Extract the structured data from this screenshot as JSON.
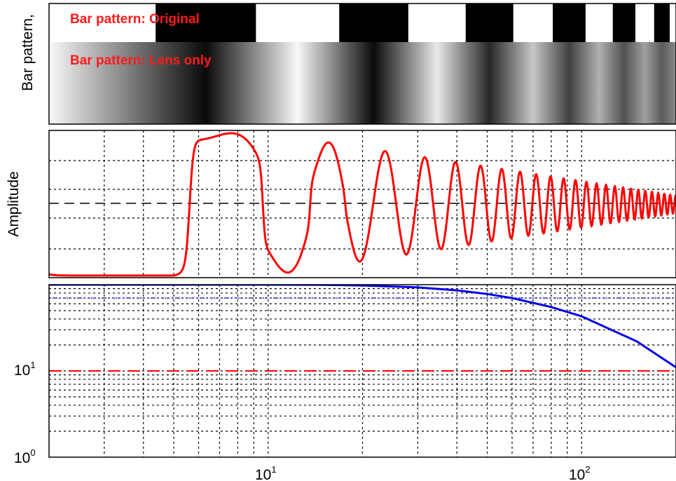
{
  "chart_data": [
    {
      "type": "image",
      "panel": "bar-pattern",
      "ylabel": "Bar pattern,",
      "annotations": [
        "Bar pattern: Original",
        "Bar pattern: Lens only"
      ],
      "x_scale": "log",
      "xlim": [
        2,
        200
      ],
      "description_values": {
        "pattern": "alternating black/white bars with period halving toward higher x"
      }
    },
    {
      "type": "line",
      "panel": "amplitude",
      "ylabel": "Amplitude",
      "x_scale": "log",
      "xlim": [
        2,
        200
      ],
      "grid": true,
      "series": [
        {
          "color": "#ff0000",
          "style": "solid",
          "note_values": {
            "cycles": 20,
            "amplitude_at_low_freq": 1.0,
            "amplitude_at_high_freq": 0.05
          }
        },
        {
          "color": "#000000",
          "style": "dashed",
          "y": 0.5
        }
      ]
    },
    {
      "type": "line",
      "panel": "mtf",
      "x_scale": "log",
      "y_scale": "log",
      "xlim": [
        2,
        200
      ],
      "ylim": [
        1,
        100
      ],
      "grid": true,
      "yticks": [
        {
          "base": "10",
          "exp": "0"
        },
        {
          "base": "10",
          "exp": "1"
        }
      ],
      "xticks": [
        {
          "base": "10",
          "exp": "1"
        },
        {
          "base": "10",
          "exp": "2"
        }
      ],
      "series": [
        {
          "color": "#0000ff",
          "style": "solid",
          "x": [
            2,
            5,
            10,
            15,
            20,
            30,
            40,
            50,
            60,
            80,
            100,
            150,
            200
          ],
          "y": [
            100,
            100,
            100,
            99.5,
            98,
            93,
            86,
            78,
            70,
            55,
            43,
            22,
            11
          ]
        },
        {
          "color": "#0000ff",
          "style": "dotted",
          "y": 70
        },
        {
          "color": "#ff0000",
          "style": "dashed",
          "y": 10
        }
      ]
    }
  ],
  "labels": {
    "bar_ylabel": "Bar pattern,",
    "amp_ylabel": "Amplitude",
    "ann_original": "Bar pattern: Original",
    "ann_lens": "Bar pattern: Lens only",
    "y_tick_0_base": "10",
    "y_tick_0_exp": "0",
    "y_tick_1_base": "10",
    "y_tick_1_exp": "1",
    "x_tick_1_base": "10",
    "x_tick_1_exp": "1",
    "x_tick_2_base": "10",
    "x_tick_2_exp": "2"
  }
}
